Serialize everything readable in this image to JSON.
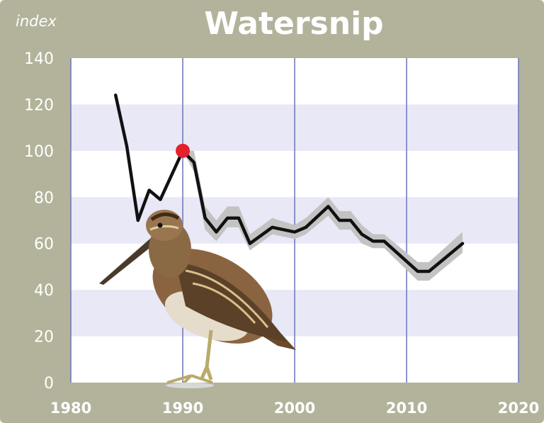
{
  "chart_data": {
    "type": "line",
    "title": "Watersnip",
    "ylabel": "index",
    "xlabel": "",
    "xlim": [
      1980,
      2020
    ],
    "ylim": [
      0,
      140
    ],
    "x_ticks": [
      "1980",
      "1990",
      "2000",
      "2010",
      "2020"
    ],
    "y_ticks": [
      "0",
      "20",
      "40",
      "60",
      "80",
      "100",
      "120",
      "140"
    ],
    "grid": "vertical lines at decades; alternating horizontal bands",
    "reference_point": {
      "x": 1990,
      "y": 100
    },
    "series": [
      {
        "values": [
          {
            "x": 1984,
            "y": 124
          },
          {
            "x": 1985,
            "y": 102
          },
          {
            "x": 1986,
            "y": 70
          },
          {
            "x": 1987,
            "y": 83
          },
          {
            "x": 1988,
            "y": 79
          },
          {
            "x": 1990,
            "y": 100
          },
          {
            "x": 1991,
            "y": 95
          },
          {
            "x": 1992,
            "y": 71
          },
          {
            "x": 1993,
            "y": 65
          },
          {
            "x": 1994,
            "y": 71
          },
          {
            "x": 1995,
            "y": 71
          },
          {
            "x": 1996,
            "y": 60
          },
          {
            "x": 1998,
            "y": 67
          },
          {
            "x": 2000,
            "y": 65
          },
          {
            "x": 2001,
            "y": 67
          },
          {
            "x": 2003,
            "y": 76
          },
          {
            "x": 2004,
            "y": 70
          },
          {
            "x": 2005,
            "y": 70
          },
          {
            "x": 2006,
            "y": 64
          },
          {
            "x": 2007,
            "y": 61
          },
          {
            "x": 2008,
            "y": 61
          },
          {
            "x": 2011,
            "y": 48
          },
          {
            "x": 2012,
            "y": 48
          },
          {
            "x": 2015,
            "y": 60
          }
        ]
      }
    ],
    "confidence_band": [
      {
        "x": 1990,
        "lo": 100,
        "hi": 100
      },
      {
        "x": 1991,
        "lo": 91,
        "hi": 100
      },
      {
        "x": 1992,
        "lo": 66,
        "hi": 76
      },
      {
        "x": 1993,
        "lo": 61,
        "hi": 70
      },
      {
        "x": 1994,
        "lo": 67,
        "hi": 76
      },
      {
        "x": 1995,
        "lo": 67,
        "hi": 76
      },
      {
        "x": 1996,
        "lo": 57,
        "hi": 64
      },
      {
        "x": 1998,
        "lo": 64,
        "hi": 71
      },
      {
        "x": 2000,
        "lo": 62,
        "hi": 68
      },
      {
        "x": 2001,
        "lo": 64,
        "hi": 71
      },
      {
        "x": 2003,
        "lo": 72,
        "hi": 80
      },
      {
        "x": 2004,
        "lo": 66,
        "hi": 74
      },
      {
        "x": 2005,
        "lo": 66,
        "hi": 74
      },
      {
        "x": 2006,
        "lo": 60,
        "hi": 68
      },
      {
        "x": 2007,
        "lo": 58,
        "hi": 64
      },
      {
        "x": 2008,
        "lo": 58,
        "hi": 64
      },
      {
        "x": 2011,
        "lo": 44,
        "hi": 52
      },
      {
        "x": 2012,
        "lo": 44,
        "hi": 52
      },
      {
        "x": 2015,
        "lo": 56,
        "hi": 65
      }
    ],
    "colors": {
      "frame": "#b3b39c",
      "band_light": "#ffffff",
      "band_dark": "#e8e8f6",
      "gridline": "#6d74b8",
      "line": "#111111",
      "confidence": "#c3c3c3",
      "marker": "#e3202c"
    },
    "illustration": "common-snipe-bird"
  }
}
